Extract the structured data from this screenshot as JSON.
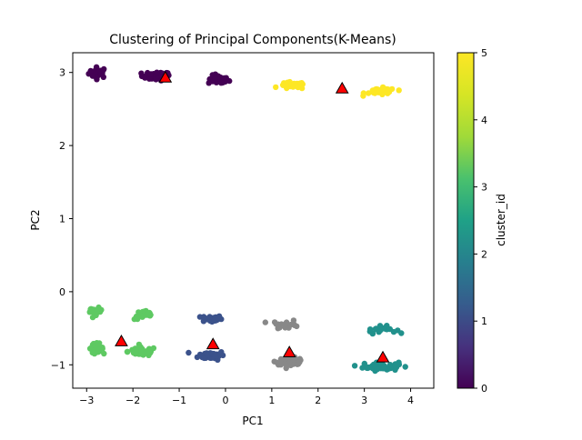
{
  "chart_data": {
    "type": "scatter",
    "title": "Clustering of Principal Components(K-Means)",
    "xlabel": "PC1",
    "ylabel": "PC2",
    "xlim": [
      -3.3,
      4.5
    ],
    "ylim": [
      -1.32,
      3.27
    ],
    "grid": false,
    "x_ticks": [
      -3,
      -2,
      -1,
      0,
      1,
      2,
      3,
      4
    ],
    "y_ticks": [
      -1,
      0,
      1,
      2,
      3
    ],
    "colorbar": {
      "label": "cluster_id",
      "range": [
        0,
        5
      ],
      "ticks": [
        0,
        1,
        2,
        3,
        4,
        5
      ],
      "colormap": "viridis",
      "colors": [
        "#440154",
        "#3b528b",
        "#21918c",
        "#5ec962",
        "#fde725"
      ]
    },
    "blobs": [
      {
        "cluster": 0,
        "cx": -2.75,
        "cy": 3.0,
        "sx": 0.18,
        "sy": 0.06,
        "n": 30
      },
      {
        "cluster": 0,
        "cx": -1.5,
        "cy": 2.95,
        "sx": 0.28,
        "sy": 0.05,
        "n": 40
      },
      {
        "cluster": 0,
        "cx": -0.15,
        "cy": 2.9,
        "sx": 0.2,
        "sy": 0.05,
        "n": 38
      },
      {
        "cluster": 1,
        "cx": -0.3,
        "cy": -0.37,
        "sx": 0.2,
        "sy": 0.04,
        "n": 30
      },
      {
        "cluster": 1,
        "cx": -0.3,
        "cy": -0.87,
        "sx": 0.26,
        "sy": 0.05,
        "n": 42
      },
      {
        "cluster": 2,
        "cx": 3.35,
        "cy": -0.52,
        "sx": 0.3,
        "sy": 0.04,
        "n": 22
      },
      {
        "cluster": 2,
        "cx": 3.35,
        "cy": -1.02,
        "sx": 0.35,
        "sy": 0.05,
        "n": 55
      },
      {
        "cluster": 3,
        "cx": -2.8,
        "cy": -0.27,
        "sx": 0.12,
        "sy": 0.04,
        "n": 28
      },
      {
        "cluster": 3,
        "cx": -2.8,
        "cy": -0.77,
        "sx": 0.14,
        "sy": 0.05,
        "n": 32
      },
      {
        "cluster": 3,
        "cx": -1.75,
        "cy": -0.32,
        "sx": 0.2,
        "sy": 0.05,
        "n": 26
      },
      {
        "cluster": 3,
        "cx": -1.8,
        "cy": -0.82,
        "sx": 0.28,
        "sy": 0.05,
        "n": 48
      },
      {
        "cluster": 4,
        "cx": 1.45,
        "cy": 2.82,
        "sx": 0.25,
        "sy": 0.04,
        "n": 30
      },
      {
        "cluster": 4,
        "cx": 3.35,
        "cy": 2.74,
        "sx": 0.3,
        "sy": 0.04,
        "n": 36
      },
      {
        "cluster": 5,
        "cx": 1.3,
        "cy": -0.45,
        "sx": 0.28,
        "sy": 0.05,
        "n": 22
      },
      {
        "cluster": 5,
        "cx": 1.4,
        "cy": -0.95,
        "sx": 0.28,
        "sy": 0.04,
        "n": 46
      }
    ],
    "centroids": [
      {
        "x": -1.3,
        "y": 2.93
      },
      {
        "x": -0.27,
        "y": -0.72
      },
      {
        "x": 3.4,
        "y": -0.9
      },
      {
        "x": -2.25,
        "y": -0.68
      },
      {
        "x": 2.52,
        "y": 2.78
      },
      {
        "x": 1.38,
        "y": -0.83
      }
    ]
  }
}
